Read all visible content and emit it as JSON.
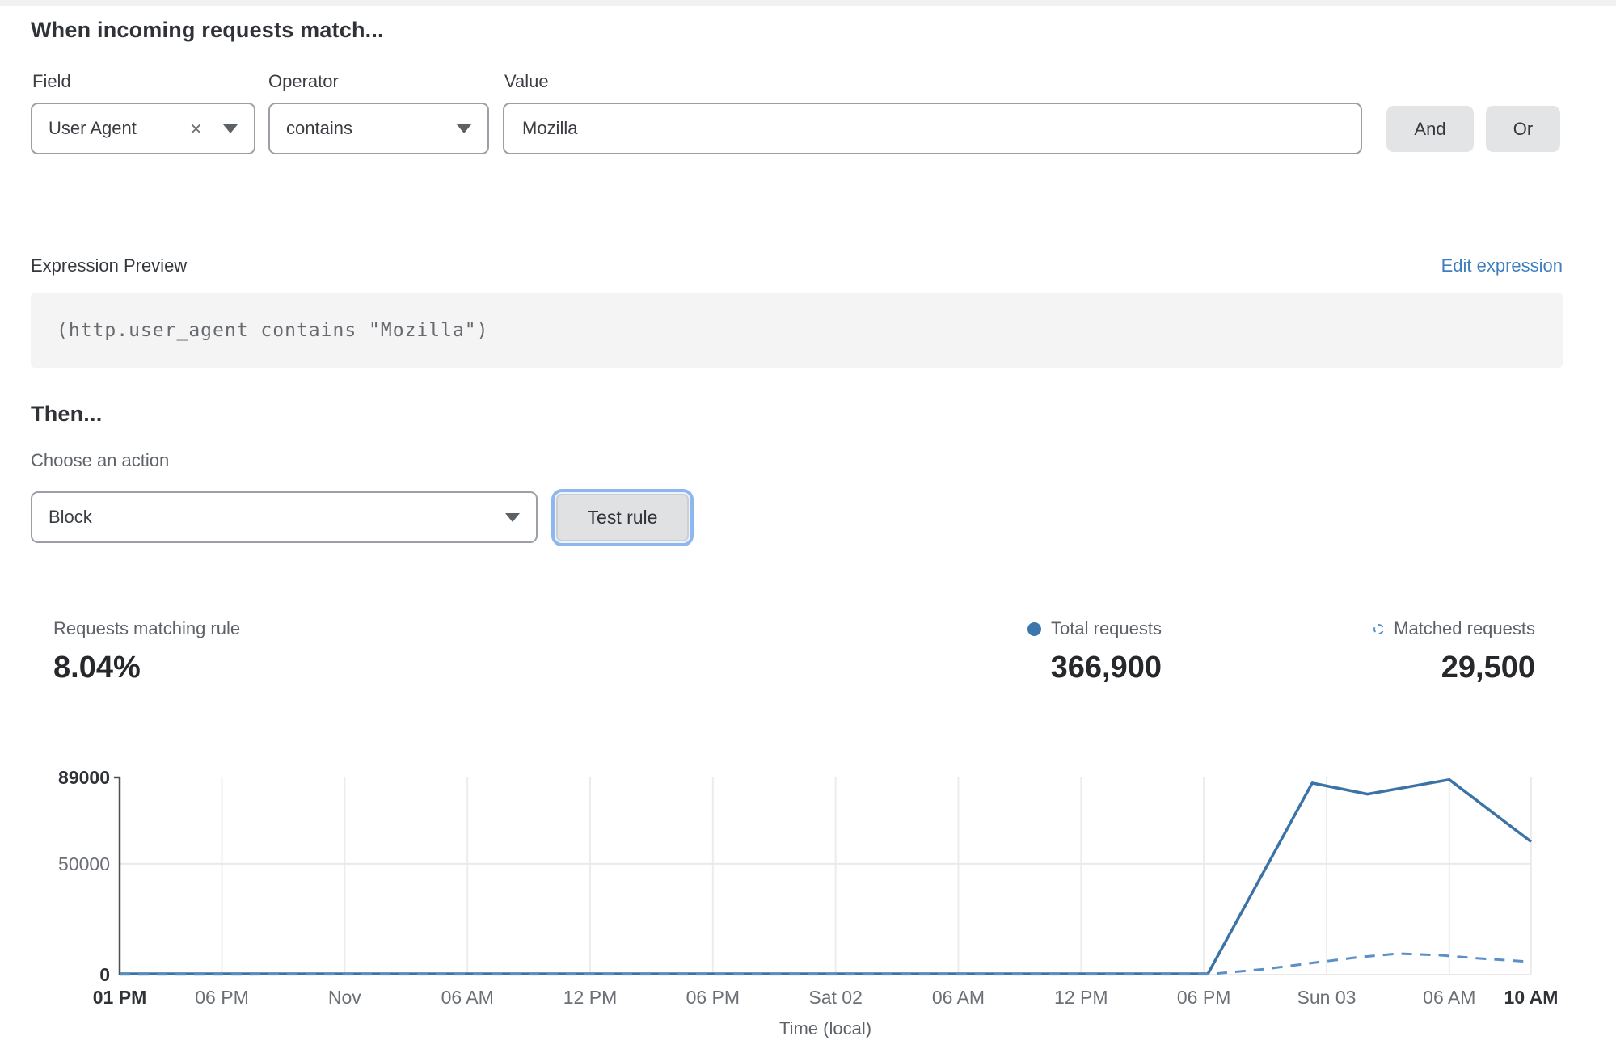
{
  "rule_builder": {
    "heading": "When incoming requests match...",
    "field": {
      "label": "Field",
      "value": "User Agent"
    },
    "operator": {
      "label": "Operator",
      "value": "contains"
    },
    "value": {
      "label": "Value",
      "value": "Mozilla"
    },
    "and_label": "And",
    "or_label": "Or"
  },
  "expression": {
    "label": "Expression Preview",
    "edit_link": "Edit expression",
    "code": "(http.user_agent contains \"Mozilla\")"
  },
  "action": {
    "heading": "Then...",
    "choose_label": "Choose an action",
    "selected": "Block",
    "test_button": "Test rule"
  },
  "stats": {
    "matching": {
      "label": "Requests matching rule",
      "value": "8.04%"
    },
    "total": {
      "label": "Total requests",
      "value": "366,900"
    },
    "matched": {
      "label": "Matched requests",
      "value": "29,500"
    }
  },
  "colors": {
    "accent_blue": "#3f7fc1",
    "line_total": "#3c73a6",
    "line_matched": "#5a8fc7",
    "grid": "#ececec",
    "axis": "#4d5156",
    "tick_gray": "#6b7076",
    "tick_bold": "#2f3338"
  },
  "chart_data": {
    "type": "line",
    "xlabel": "Time (local)",
    "ylabel": "",
    "x_domain_hours": [
      0,
      69
    ],
    "ylim": [
      0,
      89000
    ],
    "grid": true,
    "legend_position": "above-right",
    "yticks": [
      {
        "value": 0,
        "label": "0",
        "bold": true
      },
      {
        "value": 50000,
        "label": "50000",
        "bold": false
      },
      {
        "value": 89000,
        "label": "89000",
        "bold": true
      }
    ],
    "xticks": [
      {
        "hour": 0,
        "label": "01 PM",
        "bold": true
      },
      {
        "hour": 5,
        "label": "06 PM",
        "bold": false
      },
      {
        "hour": 11,
        "label": "Nov",
        "bold": false
      },
      {
        "hour": 17,
        "label": "06 AM",
        "bold": false
      },
      {
        "hour": 23,
        "label": "12 PM",
        "bold": false
      },
      {
        "hour": 29,
        "label": "06 PM",
        "bold": false
      },
      {
        "hour": 35,
        "label": "Sat 02",
        "bold": false
      },
      {
        "hour": 41,
        "label": "06 AM",
        "bold": false
      },
      {
        "hour": 47,
        "label": "12 PM",
        "bold": false
      },
      {
        "hour": 53,
        "label": "06 PM",
        "bold": false
      },
      {
        "hour": 59,
        "label": "Sun 03",
        "bold": false
      },
      {
        "hour": 65,
        "label": "06 AM",
        "bold": false
      },
      {
        "hour": 69,
        "label": "10 AM",
        "bold": true
      }
    ],
    "series": [
      {
        "name": "Total requests",
        "style": "solid",
        "color": "#3c73a6",
        "points": [
          [
            0,
            350
          ],
          [
            53.2,
            350
          ],
          [
            58.3,
            86500
          ],
          [
            61,
            81500
          ],
          [
            65,
            88000
          ],
          [
            69,
            60000
          ]
        ]
      },
      {
        "name": "Matched requests",
        "style": "dashed",
        "color": "#5a8fc7",
        "points": [
          [
            0,
            120
          ],
          [
            53.2,
            150
          ],
          [
            56,
            2500
          ],
          [
            58.5,
            5500
          ],
          [
            60.5,
            7800
          ],
          [
            62.5,
            9500
          ],
          [
            64.5,
            8800
          ],
          [
            66.5,
            7300
          ],
          [
            69,
            5800
          ]
        ]
      }
    ]
  }
}
